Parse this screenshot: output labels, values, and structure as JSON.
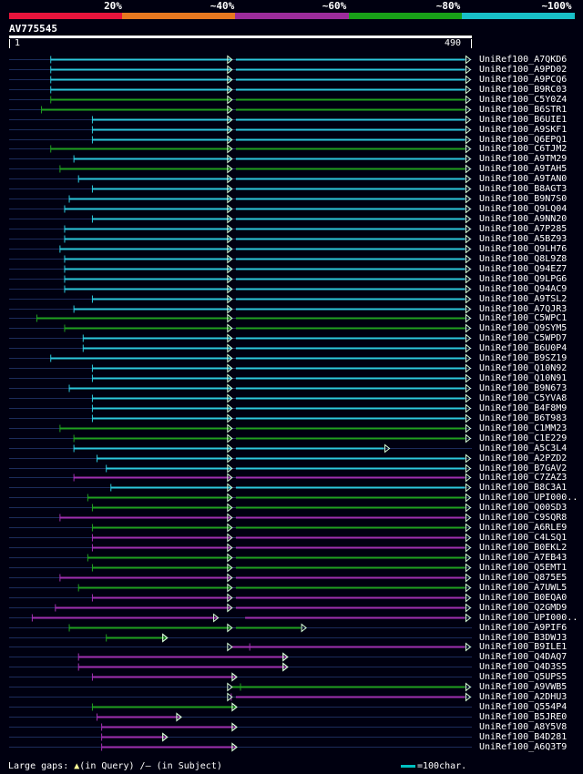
{
  "scale": {
    "labels": [
      "20%",
      "~40%",
      "~60%",
      "~80%",
      "~100%"
    ],
    "colors": [
      "#e8143c",
      "#e87820",
      "#9c2c9c",
      "#18a018",
      "#18c0c8"
    ]
  },
  "query": {
    "id": "AV775545",
    "start": "1",
    "end": "490"
  },
  "hit_colors": {
    "cyan": "#2cc8dc",
    "green": "#20a020",
    "purple": "#a030b0"
  },
  "hits": [
    {
      "label": "UniRef100_A7QKD6",
      "color": "cyan",
      "q": [
        0.09,
        0.995
      ],
      "b": [
        0.48,
        0.49
      ]
    },
    {
      "label": "UniRef100_A9PD02",
      "color": "cyan",
      "q": [
        0.09,
        0.995
      ],
      "b": [
        0.48,
        0.49
      ]
    },
    {
      "label": "UniRef100_A9PCQ6",
      "color": "cyan",
      "q": [
        0.09,
        0.995
      ],
      "b": [
        0.48,
        0.49
      ]
    },
    {
      "label": "UniRef100_B9RC03",
      "color": "cyan",
      "q": [
        0.09,
        0.995
      ],
      "b": [
        0.48,
        0.49
      ]
    },
    {
      "label": "UniRef100_C5Y0Z4",
      "color": "green",
      "q": [
        0.09,
        0.995
      ],
      "b": [
        0.48,
        0.49
      ]
    },
    {
      "label": "UniRef100_B6STR1",
      "color": "green",
      "q": [
        0.07,
        0.995
      ],
      "b": [
        0.48,
        0.49
      ]
    },
    {
      "label": "UniRef100_B6UIE1",
      "color": "cyan",
      "q": [
        0.18,
        0.995
      ],
      "b": [
        0.48,
        0.49
      ]
    },
    {
      "label": "UniRef100_A9SKF1",
      "color": "cyan",
      "q": [
        0.18,
        0.995
      ],
      "b": [
        0.48,
        0.49
      ]
    },
    {
      "label": "UniRef100_Q6EPQ1",
      "color": "cyan",
      "q": [
        0.18,
        0.995
      ],
      "b": [
        0.48,
        0.49
      ]
    },
    {
      "label": "UniRef100_C6TJM2",
      "color": "green",
      "q": [
        0.09,
        0.995
      ],
      "b": [
        0.48,
        0.49
      ]
    },
    {
      "label": "UniRef100_A9TM29",
      "color": "cyan",
      "q": [
        0.14,
        0.995
      ],
      "b": [
        0.48,
        0.49
      ]
    },
    {
      "label": "UniRef100_A9TAH5",
      "color": "green",
      "q": [
        0.11,
        0.995
      ],
      "b": [
        0.48,
        0.49
      ]
    },
    {
      "label": "UniRef100_A9TAN0",
      "color": "cyan",
      "q": [
        0.15,
        0.995
      ],
      "b": [
        0.48,
        0.49
      ]
    },
    {
      "label": "UniRef100_B8AGT3",
      "color": "cyan",
      "q": [
        0.18,
        0.995
      ],
      "b": [
        0.48,
        0.49
      ]
    },
    {
      "label": "UniRef100_B9N7S0",
      "color": "cyan",
      "q": [
        0.13,
        0.995
      ],
      "b": [
        0.48,
        0.49
      ]
    },
    {
      "label": "UniRef100_Q9LQ04",
      "color": "cyan",
      "q": [
        0.12,
        0.995
      ],
      "b": [
        0.48,
        0.49
      ]
    },
    {
      "label": "UniRef100_A9NN20",
      "color": "cyan",
      "q": [
        0.18,
        0.995
      ],
      "b": [
        0.48,
        0.49
      ]
    },
    {
      "label": "UniRef100_A7P285",
      "color": "cyan",
      "q": [
        0.12,
        0.995
      ],
      "b": [
        0.48,
        0.49
      ]
    },
    {
      "label": "UniRef100_A5BZ93",
      "color": "cyan",
      "q": [
        0.12,
        0.995
      ],
      "b": [
        0.48,
        0.49
      ]
    },
    {
      "label": "UniRef100_Q9LH76",
      "color": "cyan",
      "q": [
        0.11,
        0.995
      ],
      "b": [
        0.48,
        0.49
      ]
    },
    {
      "label": "UniRef100_Q8L9Z8",
      "color": "cyan",
      "q": [
        0.12,
        0.995
      ],
      "b": [
        0.48,
        0.49
      ]
    },
    {
      "label": "UniRef100_Q94EZ7",
      "color": "cyan",
      "q": [
        0.12,
        0.995
      ],
      "b": [
        0.48,
        0.49
      ]
    },
    {
      "label": "UniRef100_Q9LPG6",
      "color": "cyan",
      "q": [
        0.12,
        0.995
      ],
      "b": [
        0.48,
        0.49
      ]
    },
    {
      "label": "UniRef100_Q94AC9",
      "color": "cyan",
      "q": [
        0.12,
        0.995
      ],
      "b": [
        0.48,
        0.49
      ]
    },
    {
      "label": "UniRef100_A9TSL2",
      "color": "cyan",
      "q": [
        0.18,
        0.995
      ],
      "b": [
        0.48,
        0.49
      ]
    },
    {
      "label": "UniRef100_A7QJR3",
      "color": "cyan",
      "q": [
        0.14,
        0.995
      ],
      "b": [
        0.48,
        0.49
      ]
    },
    {
      "label": "UniRef100_C5WPC1",
      "color": "green",
      "q": [
        0.06,
        0.995
      ],
      "b": [
        0.48,
        0.49
      ]
    },
    {
      "label": "UniRef100_Q9SYM5",
      "color": "green",
      "q": [
        0.12,
        0.995
      ],
      "b": [
        0.48,
        0.49
      ]
    },
    {
      "label": "UniRef100_C5WPD7",
      "color": "cyan",
      "q": [
        0.16,
        0.995
      ],
      "b": [
        0.48,
        0.49
      ]
    },
    {
      "label": "UniRef100_B6U0P4",
      "color": "cyan",
      "q": [
        0.16,
        0.995
      ],
      "b": [
        0.48,
        0.49
      ]
    },
    {
      "label": "UniRef100_B9SZ19",
      "color": "cyan",
      "q": [
        0.09,
        0.995
      ],
      "b": [
        0.48,
        0.49
      ]
    },
    {
      "label": "UniRef100_Q10N92",
      "color": "cyan",
      "q": [
        0.18,
        0.995
      ],
      "b": [
        0.48,
        0.49
      ]
    },
    {
      "label": "UniRef100_Q10N91",
      "color": "cyan",
      "q": [
        0.18,
        0.995
      ],
      "b": [
        0.48,
        0.49
      ]
    },
    {
      "label": "UniRef100_B9N673",
      "color": "cyan",
      "q": [
        0.13,
        0.995
      ],
      "b": [
        0.48,
        0.49
      ]
    },
    {
      "label": "UniRef100_C5YVA8",
      "color": "cyan",
      "q": [
        0.18,
        0.995
      ],
      "b": [
        0.48,
        0.49
      ]
    },
    {
      "label": "UniRef100_B4F8M9",
      "color": "cyan",
      "q": [
        0.18,
        0.995
      ],
      "b": [
        0.48,
        0.49
      ]
    },
    {
      "label": "UniRef100_B6T983",
      "color": "cyan",
      "q": [
        0.18,
        0.995
      ],
      "b": [
        0.48,
        0.49
      ]
    },
    {
      "label": "UniRef100_C1MM23",
      "color": "green",
      "q": [
        0.11,
        0.995
      ],
      "b": [
        0.48,
        0.49
      ]
    },
    {
      "label": "UniRef100_C1E229",
      "color": "green",
      "q": [
        0.14,
        0.995
      ],
      "b": [
        0.48,
        0.49
      ]
    },
    {
      "label": "UniRef100_A5C3L4",
      "color": "cyan",
      "q": [
        0.14,
        0.82
      ],
      "b": [
        0.48,
        0.49
      ]
    },
    {
      "label": "UniRef100_A2PZD2",
      "color": "cyan",
      "q": [
        0.19,
        0.995
      ],
      "b": [
        0.48,
        0.49
      ]
    },
    {
      "label": "UniRef100_B7GAV2",
      "color": "cyan",
      "q": [
        0.21,
        0.995
      ],
      "b": [
        0.48,
        0.49
      ]
    },
    {
      "label": "UniRef100_C7ZAZ3",
      "color": "purple",
      "q": [
        0.14,
        0.995
      ],
      "b": [
        0.48,
        0.49
      ]
    },
    {
      "label": "UniRef100_B8C3A1",
      "color": "cyan",
      "q": [
        0.22,
        0.995
      ],
      "b": [
        0.48,
        0.49
      ]
    },
    {
      "label": "UniRef100_UPI000..",
      "color": "green",
      "q": [
        0.17,
        0.995
      ],
      "b": [
        0.48,
        0.49
      ]
    },
    {
      "label": "UniRef100_Q00SD3",
      "color": "green",
      "q": [
        0.18,
        0.995
      ],
      "b": [
        0.48,
        0.49
      ]
    },
    {
      "label": "UniRef100_C9SQR8",
      "color": "purple",
      "q": [
        0.11,
        0.995
      ],
      "b": [
        0.48,
        0.49
      ]
    },
    {
      "label": "UniRef100_A6RLE9",
      "color": "green",
      "q": [
        0.18,
        0.995
      ],
      "b": [
        0.48,
        0.49
      ]
    },
    {
      "label": "UniRef100_C4LSQ1",
      "color": "purple",
      "q": [
        0.18,
        0.995
      ],
      "b": [
        0.48,
        0.49
      ]
    },
    {
      "label": "UniRef100_B0EKL2",
      "color": "purple",
      "q": [
        0.18,
        0.995
      ],
      "b": [
        0.48,
        0.49
      ]
    },
    {
      "label": "UniRef100_A7EB43",
      "color": "green",
      "q": [
        0.17,
        0.995
      ],
      "b": [
        0.48,
        0.49
      ]
    },
    {
      "label": "UniRef100_Q5EMT1",
      "color": "green",
      "q": [
        0.18,
        0.995
      ],
      "b": [
        0.48,
        0.49
      ]
    },
    {
      "label": "UniRef100_Q875E5",
      "color": "purple",
      "q": [
        0.11,
        0.995
      ],
      "b": [
        0.48,
        0.49
      ]
    },
    {
      "label": "UniRef100_A7UWL5",
      "color": "green",
      "q": [
        0.15,
        0.995
      ],
      "b": [
        0.48,
        0.49
      ]
    },
    {
      "label": "UniRef100_B0EQA0",
      "color": "purple",
      "q": [
        0.18,
        0.995
      ],
      "b": [
        0.48,
        0.49
      ]
    },
    {
      "label": "UniRef100_Q2GMD9",
      "color": "purple",
      "q": [
        0.1,
        0.995
      ],
      "b": [
        0.48,
        0.49
      ]
    },
    {
      "label": "UniRef100_UPI000..",
      "color": "purple",
      "q": [
        0.05,
        0.995
      ],
      "b": [
        0.45,
        0.51
      ]
    },
    {
      "label": "UniRef100_A9PIF6",
      "color": "green",
      "q": [
        0.13,
        0.64
      ],
      "b": [
        0.48,
        0.49
      ]
    },
    {
      "label": "UniRef100_B3DWJ3",
      "color": "green",
      "q": [
        0.21,
        0.34
      ],
      "b": [
        0.48,
        0.94
      ]
    },
    {
      "label": "UniRef100_B9ILE1",
      "color": "purple",
      "q": [
        0.52,
        0.995
      ],
      "b": [
        0.48,
        0.49
      ]
    },
    {
      "label": "UniRef100_Q4DAQ7",
      "color": "purple",
      "q": [
        0.15,
        0.6
      ],
      "b": [
        0.62,
        0.995
      ]
    },
    {
      "label": "UniRef100_Q4D3S5",
      "color": "purple",
      "q": [
        0.15,
        0.6
      ],
      "b": [
        0.62,
        0.995
      ]
    },
    {
      "label": "UniRef100_Q5UPS5",
      "color": "purple",
      "q": [
        0.18,
        0.49
      ],
      "b": [
        0.53,
        0.995
      ]
    },
    {
      "label": "UniRef100_A9VWB5",
      "color": "green",
      "q": [
        0.5,
        0.995
      ],
      "b": [
        0.48,
        0.49
      ]
    },
    {
      "label": "UniRef100_A2DHU3",
      "color": "purple",
      "q": [
        0.48,
        0.995
      ],
      "b": [
        0.48,
        0.49
      ]
    },
    {
      "label": "UniRef100_Q554P4",
      "color": "green",
      "q": [
        0.18,
        0.49
      ],
      "b": [
        0.49,
        0.59
      ]
    },
    {
      "label": "UniRef100_B5JRE0",
      "color": "purple",
      "q": [
        0.19,
        0.37
      ],
      "b": [
        0.44,
        0.93
      ]
    },
    {
      "label": "UniRef100_A8Y5V8",
      "color": "purple",
      "q": [
        0.2,
        0.49
      ],
      "b": [
        0.61,
        0.995
      ]
    },
    {
      "label": "UniRef100_B4D281",
      "color": "purple",
      "q": [
        0.2,
        0.34
      ],
      "b": [
        0.49,
        0.93
      ]
    },
    {
      "label": "UniRef100_A6Q3T9",
      "color": "purple",
      "q": [
        0.2,
        0.49
      ],
      "b": [
        0.61,
        0.995
      ]
    }
  ],
  "footer": {
    "large_gaps_label": "Large gaps:",
    "query_gap_symbol": "▲",
    "in_query": "(in Query)",
    "subject_gap_symbol": "/–",
    "in_subject": "(in Subject)",
    "scale_label": "=100char."
  }
}
